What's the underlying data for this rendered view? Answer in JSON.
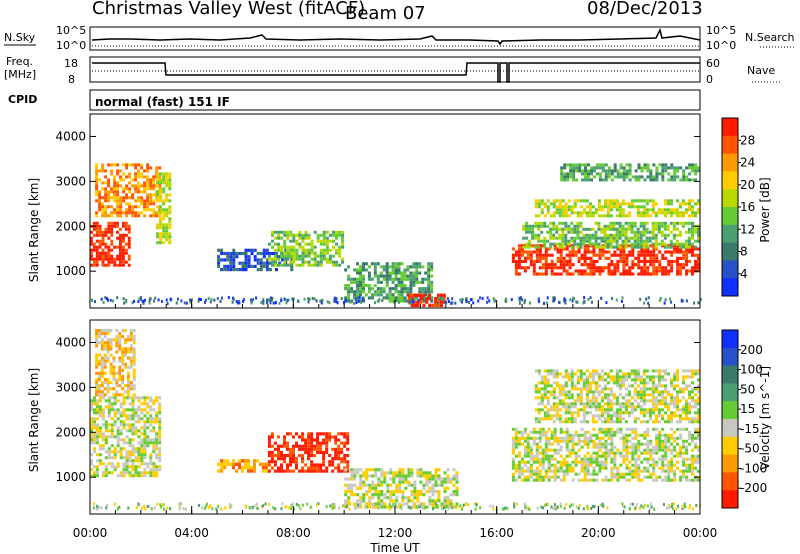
{
  "header": {
    "station": "Christmas Valley West (fitACF)",
    "beam": "Beam 07",
    "date": "08/Dec/2013"
  },
  "panels": {
    "nsky_label": "N.Sky",
    "nsearch_label": "N.Search",
    "nsky_ticks": [
      "10^5",
      "10^0"
    ],
    "nsearch_ticks": [
      "10^5",
      "10^0"
    ],
    "freq_label_1": "Freq.",
    "freq_label_2": "[MHz]",
    "freq_ticks": [
      "18",
      "8"
    ],
    "nave_label": "Nave",
    "nave_ticks": [
      "60",
      "0"
    ],
    "cpid_label": "CPID",
    "cpid_value": "normal (fast) 151 IF"
  },
  "colors": {
    "power_scale": [
      "#1030ff",
      "#2850c8",
      "#3a7a6a",
      "#4aa070",
      "#66cc33",
      "#b8d800",
      "#ffcc00",
      "#ff9900",
      "#ff5500",
      "#ff1a00"
    ],
    "velocity_scale": [
      "#1030ff",
      "#2850c8",
      "#3a7a6a",
      "#4aa070",
      "#66cc33",
      "#c8c8c0",
      "#ffcc00",
      "#ff9900",
      "#ff5500",
      "#ff1a00"
    ],
    "ground_scatter": "#c8c8c0"
  },
  "chart_data": [
    {
      "type": "heatmap",
      "name": "power",
      "ylabel": "Slant Range [km]",
      "xlabel": "Time UT",
      "yticks": [
        "1000",
        "2000",
        "3000",
        "4000"
      ],
      "ylim": [
        180,
        4500
      ],
      "colorbar_label": "Power [dB]",
      "colorbar_ticks": [
        "4",
        "8",
        "12",
        "16",
        "20",
        "24",
        "28"
      ],
      "regions": [
        {
          "t0": 0.0,
          "t1": 1.6,
          "r0": 1100,
          "r1": 2100,
          "level": 9
        },
        {
          "t0": 0.2,
          "t1": 2.8,
          "r0": 2200,
          "r1": 3400,
          "level": 7
        },
        {
          "t0": 2.6,
          "t1": 3.2,
          "r0": 1600,
          "r1": 3200,
          "level": 5
        },
        {
          "t0": 5.0,
          "t1": 8.0,
          "r0": 1000,
          "r1": 1500,
          "level": 1
        },
        {
          "t0": 7.0,
          "t1": 10.0,
          "r0": 1100,
          "r1": 1900,
          "level": 4
        },
        {
          "t0": 10.0,
          "t1": 13.5,
          "r0": 300,
          "r1": 1200,
          "level": 3
        },
        {
          "t0": 12.5,
          "t1": 14.0,
          "r0": 200,
          "r1": 500,
          "level": 9
        },
        {
          "t0": 16.6,
          "t1": 24.0,
          "r0": 900,
          "r1": 1600,
          "level": 9
        },
        {
          "t0": 17.0,
          "t1": 24.0,
          "r0": 1500,
          "r1": 2100,
          "level": 4
        },
        {
          "t0": 17.5,
          "t1": 24.0,
          "r0": 2200,
          "r1": 2600,
          "level": 5
        },
        {
          "t0": 18.5,
          "t1": 24.0,
          "r0": 3000,
          "r1": 3400,
          "level": 3
        }
      ]
    },
    {
      "type": "heatmap",
      "name": "velocity",
      "ylabel": "Slant Range [km]",
      "xlabel": "Time UT",
      "yticks": [
        "1000",
        "2000",
        "3000",
        "4000"
      ],
      "ylim": [
        180,
        4500
      ],
      "colorbar_label": "Velocity [m s^-1]",
      "colorbar_ticks": [
        "200",
        "100",
        "50",
        "15",
        "-15",
        "-50",
        "-100",
        "-200"
      ],
      "regions": [
        {
          "t0": 0.0,
          "t1": 2.8,
          "r0": 1000,
          "r1": 2800,
          "level": 5
        },
        {
          "t0": 0.2,
          "t1": 1.8,
          "r0": 2800,
          "r1": 4300,
          "level": 6
        },
        {
          "t0": 5.0,
          "t1": 7.0,
          "r0": 1100,
          "r1": 1400,
          "level": 7
        },
        {
          "t0": 7.0,
          "t1": 10.2,
          "r0": 1100,
          "r1": 2000,
          "level": 9
        },
        {
          "t0": 10.0,
          "t1": 14.5,
          "r0": 300,
          "r1": 1200,
          "level": 5
        },
        {
          "t0": 16.6,
          "t1": 24.0,
          "r0": 900,
          "r1": 2100,
          "level": 5
        },
        {
          "t0": 17.5,
          "t1": 24.0,
          "r0": 2200,
          "r1": 3400,
          "level": 5
        }
      ]
    }
  ],
  "xaxis": {
    "ticks": [
      "00:00",
      "04:00",
      "08:00",
      "12:00",
      "16:00",
      "20:00",
      "00:00"
    ],
    "label": "Time UT"
  }
}
